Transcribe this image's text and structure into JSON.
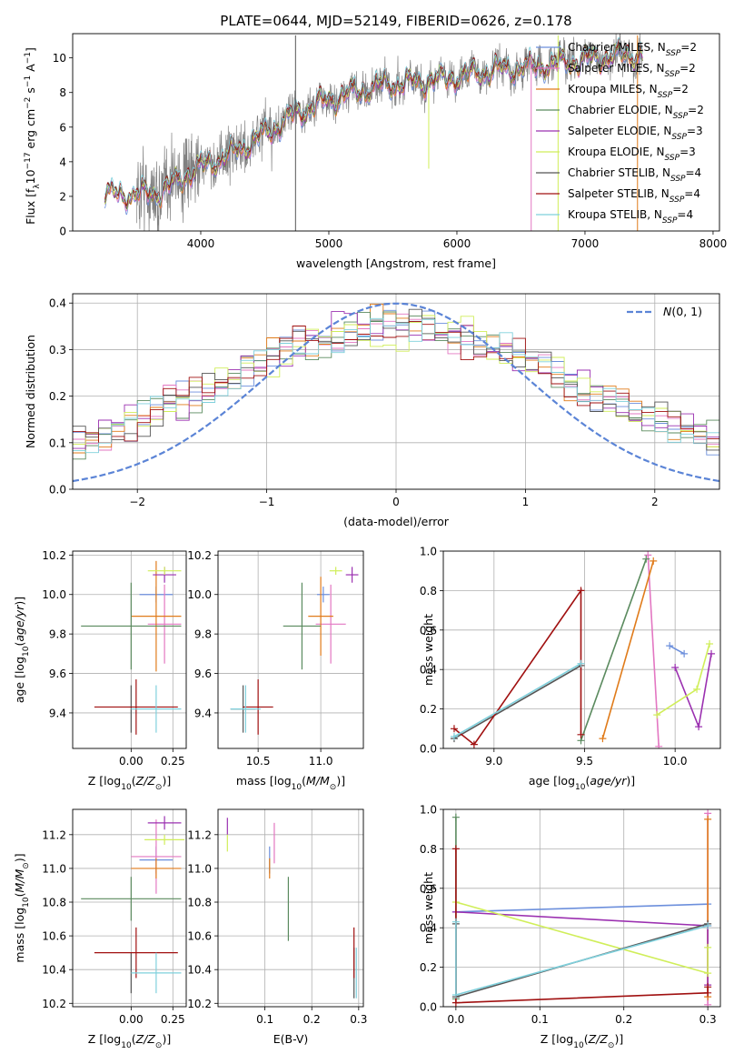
{
  "figure": {
    "title": "PLATE=0644, MJD=52149, FIBERID=0626, z=0.178"
  },
  "colors": {
    "Chabrier MILES": "#6c8fdc",
    "Salpeter MILES": "#e377c2",
    "Kroupa MILES": "#e07b1a",
    "Chabrier ELODIE": "#5a8a5e",
    "Salpeter ELODIE": "#9b30b0",
    "Kroupa ELODIE": "#d0ee5a",
    "Chabrier STELIB": "#555555",
    "Salpeter STELIB": "#a01010",
    "Kroupa STELIB": "#7fd0dc",
    "data": "#808080",
    "gauss": "#5b84d6"
  },
  "chart_data": [
    {
      "id": "spectrum",
      "type": "line",
      "xlabel": "wavelength [Angstrom, rest frame]",
      "ylabel": "Flux [f_λ 10^-17 erg cm^-2 s^-1 A^-1]",
      "xlim": [
        3000,
        8050
      ],
      "ylim": [
        0,
        11.4
      ],
      "xticks": [
        4000,
        5000,
        6000,
        7000,
        8000
      ],
      "yticks": [
        0,
        2,
        4,
        6,
        8,
        10
      ],
      "grid": false,
      "legend_position": "top-right",
      "legend": [
        {
          "model": "Chabrier MILES",
          "nssp": "2"
        },
        {
          "model": "Salpeter MILES",
          "nssp": "2"
        },
        {
          "model": "Kroupa MILES",
          "nssp": "2"
        },
        {
          "model": "Chabrier ELODIE",
          "nssp": "2"
        },
        {
          "model": "Salpeter ELODIE",
          "nssp": "3"
        },
        {
          "model": "Kroupa ELODIE",
          "nssp": "3"
        },
        {
          "model": "Chabrier STELIB",
          "nssp": "4"
        },
        {
          "model": "Salpeter STELIB",
          "nssp": "4"
        },
        {
          "model": "Kroupa STELIB",
          "nssp": "4"
        }
      ],
      "data_range": [
        3500,
        7450
      ],
      "model_range": [
        3250,
        7450
      ],
      "continuum": [
        [
          3250,
          2.1
        ],
        [
          3500,
          2.1
        ],
        [
          3700,
          2.3
        ],
        [
          3900,
          3.3
        ],
        [
          4000,
          3.7
        ],
        [
          4200,
          4.3
        ],
        [
          4500,
          5.6
        ],
        [
          4700,
          6.6
        ],
        [
          4900,
          7.3
        ],
        [
          5100,
          7.8
        ],
        [
          5400,
          8.4
        ],
        [
          5700,
          8.6
        ],
        [
          6000,
          8.9
        ],
        [
          6300,
          9.3
        ],
        [
          6600,
          9.5
        ],
        [
          6900,
          9.8
        ],
        [
          7200,
          10.1
        ],
        [
          7450,
          10.2
        ]
      ],
      "spikes": [
        [
          4740,
          0,
          11.3
        ],
        [
          6790,
          0,
          11.3
        ],
        [
          7410,
          0,
          11.3
        ],
        [
          6580,
          0,
          10.2
        ],
        [
          5780,
          3.6,
          8.6
        ]
      ]
    },
    {
      "id": "residuals",
      "type": "step",
      "xlabel": "(data-model)/error",
      "ylabel": "Normed distribution",
      "xlim": [
        -2.5,
        2.5
      ],
      "ylim": [
        0,
        0.42
      ],
      "xticks": [
        -2,
        -1,
        0,
        1,
        2
      ],
      "yticks": [
        0.0,
        0.1,
        0.2,
        0.3,
        0.4
      ],
      "grid": true,
      "legend_position": "top-right",
      "legend_label": "N(0,1)",
      "bin_width": 0.1,
      "gaussian": {
        "mean": 0,
        "sigma": 1
      }
    },
    {
      "id": "age_vs_Z",
      "type": "errorbar",
      "xlabel": "Z [log10(Z/Z⊙)]",
      "ylabel": "age [log10(age/yr)]",
      "xlim": [
        -0.35,
        0.33
      ],
      "ylim": [
        9.22,
        10.22
      ],
      "xticks": [
        0.0,
        0.25
      ],
      "yticks": [
        9.4,
        9.6,
        9.8,
        10.0,
        10.2
      ],
      "grid": true,
      "points": [
        {
          "model": "Chabrier MILES",
          "x": 0.15,
          "xerr": 0.1,
          "y": 10.0,
          "yerr": 0.04
        },
        {
          "model": "Salpeter MILES",
          "x": 0.2,
          "xerr": 0.1,
          "y": 9.85,
          "yerr": 0.2
        },
        {
          "model": "Kroupa MILES",
          "x": 0.15,
          "xerr": 0.15,
          "y": 9.89,
          "yerr": 0.28
        },
        {
          "model": "Chabrier ELODIE",
          "x": 0.0,
          "xerr": 0.3,
          "y": 9.84,
          "yerr": 0.22
        },
        {
          "model": "Salpeter ELODIE",
          "x": 0.2,
          "xerr": 0.07,
          "y": 10.1,
          "yerr": 0.04
        },
        {
          "model": "Kroupa ELODIE",
          "x": 0.2,
          "xerr": 0.1,
          "y": 10.12,
          "yerr": 0.02
        },
        {
          "model": "Chabrier STELIB",
          "x": 0.0,
          "xerr": 0.0,
          "y": 9.42,
          "yerr": 0.12
        },
        {
          "model": "Salpeter STELIB",
          "x": 0.03,
          "xerr": 0.25,
          "y": 9.43,
          "yerr": 0.14
        },
        {
          "model": "Kroupa STELIB",
          "x": 0.15,
          "xerr": 0.15,
          "y": 9.42,
          "yerr": 0.12
        }
      ]
    },
    {
      "id": "age_vs_mass",
      "type": "errorbar",
      "xlabel": "mass [log10(M/M⊙)]",
      "ylabel": "",
      "xlim": [
        10.18,
        11.34
      ],
      "ylim": [
        9.22,
        10.22
      ],
      "xticks": [
        10.5,
        11.0
      ],
      "yticks": [
        9.4,
        9.6,
        9.8,
        10.0,
        10.2
      ],
      "grid": true,
      "points": [
        {
          "model": "Chabrier MILES",
          "x": 11.02,
          "xerr": 0.05,
          "y": 10.0,
          "yerr": 0.04
        },
        {
          "model": "Salpeter MILES",
          "x": 11.08,
          "xerr": 0.12,
          "y": 9.85,
          "yerr": 0.2
        },
        {
          "model": "Kroupa MILES",
          "x": 11.0,
          "xerr": 0.1,
          "y": 9.89,
          "yerr": 0.2
        },
        {
          "model": "Chabrier ELODIE",
          "x": 10.85,
          "xerr": 0.15,
          "y": 9.84,
          "yerr": 0.22
        },
        {
          "model": "Salpeter ELODIE",
          "x": 11.25,
          "xerr": 0.05,
          "y": 10.1,
          "yerr": 0.04
        },
        {
          "model": "Kroupa ELODIE",
          "x": 11.12,
          "xerr": 0.05,
          "y": 10.12,
          "yerr": 0.02
        },
        {
          "model": "Chabrier STELIB",
          "x": 10.38,
          "xerr": 0.1,
          "y": 9.42,
          "yerr": 0.12
        },
        {
          "model": "Salpeter STELIB",
          "x": 10.5,
          "xerr": 0.12,
          "y": 9.43,
          "yerr": 0.14
        },
        {
          "model": "Kroupa STELIB",
          "x": 10.4,
          "xerr": 0.12,
          "y": 9.42,
          "yerr": 0.12
        }
      ]
    },
    {
      "id": "weight_vs_age",
      "type": "line",
      "xlabel": "age [log10(age/yr)]",
      "ylabel": "mass weight",
      "xlim": [
        8.72,
        10.25
      ],
      "ylim": [
        0,
        1.0
      ],
      "xticks": [
        9.0,
        9.5,
        10.0
      ],
      "yticks": [
        0.0,
        0.2,
        0.4,
        0.6,
        0.8,
        1.0
      ],
      "grid": true,
      "series": [
        {
          "model": "Chabrier MILES",
          "x": [
            9.97,
            10.05
          ],
          "y": [
            0.52,
            0.48
          ]
        },
        {
          "model": "Salpeter MILES",
          "x": [
            9.85,
            9.91
          ],
          "y": [
            0.98,
            0.01
          ]
        },
        {
          "model": "Kroupa MILES",
          "x": [
            9.6,
            9.88
          ],
          "y": [
            0.05,
            0.95
          ]
        },
        {
          "model": "Chabrier ELODIE",
          "x": [
            9.48,
            9.84
          ],
          "y": [
            0.04,
            0.96
          ]
        },
        {
          "model": "Salpeter ELODIE",
          "x": [
            10.0,
            10.13,
            10.2
          ],
          "y": [
            0.41,
            0.11,
            0.48
          ]
        },
        {
          "model": "Kroupa ELODIE",
          "x": [
            9.9,
            10.12,
            10.19
          ],
          "y": [
            0.17,
            0.3,
            0.53
          ]
        },
        {
          "model": "Chabrier STELIB",
          "x": [
            8.78,
            9.48
          ],
          "y": [
            0.05,
            0.42
          ]
        },
        {
          "model": "Salpeter STELIB",
          "x": [
            8.78,
            8.89,
            9.48,
            9.48
          ],
          "y": [
            0.1,
            0.02,
            0.8,
            0.07
          ]
        },
        {
          "model": "Kroupa STELIB",
          "x": [
            8.78,
            9.48
          ],
          "y": [
            0.06,
            0.43
          ]
        }
      ]
    },
    {
      "id": "mass_vs_Z",
      "type": "errorbar",
      "xlabel": "Z [log10(Z/Z⊙)]",
      "ylabel": "mass [log10(M/M⊙)]",
      "xlim": [
        -0.35,
        0.33
      ],
      "ylim": [
        10.18,
        11.35
      ],
      "xticks": [
        0.0,
        0.25
      ],
      "yticks": [
        10.2,
        10.4,
        10.6,
        10.8,
        11.0,
        11.2
      ],
      "grid": true,
      "points": [
        {
          "model": "Chabrier MILES",
          "x": 0.15,
          "xerr": 0.1,
          "y": 11.05,
          "yerr": 0.08
        },
        {
          "model": "Salpeter MILES",
          "x": 0.15,
          "xerr": 0.15,
          "y": 11.07,
          "yerr": 0.22
        },
        {
          "model": "Kroupa MILES",
          "x": 0.15,
          "xerr": 0.15,
          "y": 11.0,
          "yerr": 0.06
        },
        {
          "model": "Chabrier ELODIE",
          "x": 0.0,
          "xerr": 0.3,
          "y": 10.82,
          "yerr": 0.13
        },
        {
          "model": "Salpeter ELODIE",
          "x": 0.2,
          "xerr": 0.1,
          "y": 11.27,
          "yerr": 0.04
        },
        {
          "model": "Kroupa ELODIE",
          "x": 0.2,
          "xerr": 0.12,
          "y": 11.17,
          "yerr": 0.03
        },
        {
          "model": "Chabrier STELIB",
          "x": 0.0,
          "xerr": 0.0,
          "y": 10.38,
          "yerr": 0.12
        },
        {
          "model": "Salpeter STELIB",
          "x": 0.03,
          "xerr": 0.25,
          "y": 10.5,
          "yerr": 0.15
        },
        {
          "model": "Kroupa STELIB",
          "x": 0.15,
          "xerr": 0.15,
          "y": 10.38,
          "yerr": 0.12
        }
      ]
    },
    {
      "id": "mass_vs_ebv",
      "type": "errorbar",
      "xlabel": "E(B-V)",
      "ylabel": "",
      "xlim": [
        0.0,
        0.31
      ],
      "ylim": [
        10.18,
        11.35
      ],
      "xticks": [
        0.1,
        0.2,
        0.3
      ],
      "yticks": [
        10.2,
        10.4,
        10.6,
        10.8,
        11.0,
        11.2
      ],
      "grid": true,
      "points": [
        {
          "model": "Chabrier MILES",
          "x": 0.11,
          "xerr": 0,
          "y": 11.05,
          "yerr": 0.08
        },
        {
          "model": "Salpeter MILES",
          "x": 0.12,
          "xerr": 0,
          "y": 11.15,
          "yerr": 0.12
        },
        {
          "model": "Kroupa MILES",
          "x": 0.11,
          "xerr": 0,
          "y": 11.0,
          "yerr": 0.06
        },
        {
          "model": "Chabrier ELODIE",
          "x": 0.15,
          "xerr": 0,
          "y": 10.76,
          "yerr": 0.19
        },
        {
          "model": "Salpeter ELODIE",
          "x": 0.02,
          "xerr": 0,
          "y": 11.25,
          "yerr": 0.05
        },
        {
          "model": "Kroupa ELODIE",
          "x": 0.02,
          "xerr": 0,
          "y": 11.15,
          "yerr": 0.05
        },
        {
          "model": "Chabrier STELIB",
          "x": 0.29,
          "xerr": 0,
          "y": 10.38,
          "yerr": 0.15
        },
        {
          "model": "Salpeter STELIB",
          "x": 0.29,
          "xerr": 0,
          "y": 10.5,
          "yerr": 0.15
        },
        {
          "model": "Kroupa STELIB",
          "x": 0.295,
          "xerr": 0,
          "y": 10.38,
          "yerr": 0.15
        }
      ]
    },
    {
      "id": "weight_vs_Z",
      "type": "line",
      "xlabel": "Z [log10(Z/Z⊙)]",
      "ylabel": "mass weight",
      "xlim": [
        -0.015,
        0.315
      ],
      "ylim": [
        0,
        1.0
      ],
      "xticks": [
        0.0,
        0.1,
        0.2,
        0.3
      ],
      "yticks": [
        0.0,
        0.2,
        0.4,
        0.6,
        0.8,
        1.0
      ],
      "grid": true,
      "series": [
        {
          "model": "Chabrier MILES",
          "x": [
            0.0,
            0.3
          ],
          "y": [
            0.48,
            0.52
          ]
        },
        {
          "model": "Salpeter MILES",
          "x": [
            0.3,
            0.3
          ],
          "y": [
            0.98,
            0.01
          ]
        },
        {
          "model": "Kroupa MILES",
          "x": [
            0.3,
            0.3
          ],
          "y": [
            0.95,
            0.05
          ]
        },
        {
          "model": "Chabrier ELODIE",
          "x": [
            0.0,
            0.0
          ],
          "y": [
            0.96,
            0.04
          ]
        },
        {
          "model": "Salpeter ELODIE",
          "x": [
            0.0,
            0.3,
            0.3
          ],
          "y": [
            0.48,
            0.41,
            0.11
          ]
        },
        {
          "model": "Kroupa ELODIE",
          "x": [
            0.0,
            0.3,
            0.3
          ],
          "y": [
            0.53,
            0.17,
            0.3
          ]
        },
        {
          "model": "Chabrier STELIB",
          "x": [
            0.0,
            0.0,
            0.3
          ],
          "y": [
            0.42,
            0.05,
            0.42
          ]
        },
        {
          "model": "Salpeter STELIB",
          "x": [
            0.0,
            0.0,
            0.3,
            0.3
          ],
          "y": [
            0.8,
            0.02,
            0.07,
            0.1
          ]
        },
        {
          "model": "Kroupa STELIB",
          "x": [
            0.0,
            0.0,
            0.3
          ],
          "y": [
            0.43,
            0.06,
            0.41
          ]
        }
      ]
    }
  ]
}
